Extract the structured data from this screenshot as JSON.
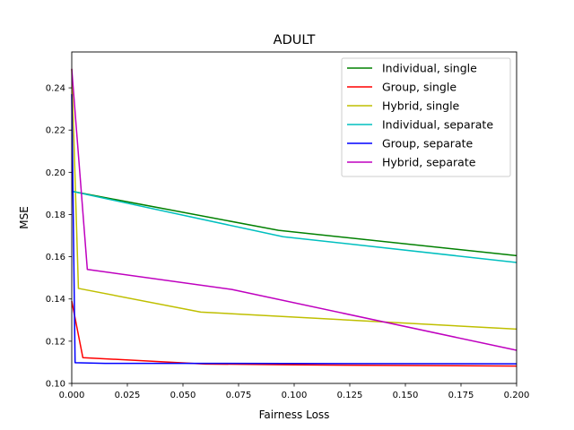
{
  "chart_data": {
    "type": "line",
    "title": "ADULT",
    "xlabel": "Fairness Loss",
    "ylabel": "MSE",
    "xlim": [
      0.0,
      0.2
    ],
    "ylim": [
      0.1,
      0.257
    ],
    "grid": false,
    "legend_position": "top-right",
    "x_ticks": [
      0.0,
      0.025,
      0.05,
      0.075,
      0.1,
      0.125,
      0.15,
      0.175,
      0.2
    ],
    "x_tick_labels": [
      "0.000",
      "0.025",
      "0.050",
      "0.075",
      "0.100",
      "0.125",
      "0.150",
      "0.175",
      "0.200"
    ],
    "y_ticks": [
      0.1,
      0.12,
      0.14,
      0.16,
      0.18,
      0.2,
      0.22,
      0.24
    ],
    "y_tick_labels": [
      "0.10",
      "0.12",
      "0.14",
      "0.16",
      "0.18",
      "0.20",
      "0.22",
      "0.24"
    ],
    "series": [
      {
        "name": "Individual, single",
        "color": "#008000",
        "points": [
          [
            0.0,
            0.191
          ],
          [
            0.093,
            0.1725
          ],
          [
            0.2,
            0.1605
          ]
        ]
      },
      {
        "name": "Group, single",
        "color": "#ff0000",
        "points": [
          [
            0.0,
            0.139
          ],
          [
            0.005,
            0.1122
          ],
          [
            0.06,
            0.1092
          ],
          [
            0.1,
            0.1088
          ],
          [
            0.2,
            0.1082
          ]
        ]
      },
      {
        "name": "Hybrid, single",
        "color": "#bfbf00",
        "points": [
          [
            0.0,
            0.249
          ],
          [
            0.003,
            0.145
          ],
          [
            0.058,
            0.1338
          ],
          [
            0.2,
            0.1257
          ]
        ]
      },
      {
        "name": "Individual, separate",
        "color": "#00bfbf",
        "points": [
          [
            0.0,
            0.191
          ],
          [
            0.095,
            0.1695
          ],
          [
            0.2,
            0.1573
          ]
        ]
      },
      {
        "name": "Group, separate",
        "color": "#0000ff",
        "points": [
          [
            0.0,
            0.237
          ],
          [
            0.0015,
            0.1098
          ],
          [
            0.015,
            0.1095
          ],
          [
            0.06,
            0.1095
          ],
          [
            0.2,
            0.1093
          ]
        ]
      },
      {
        "name": "Hybrid, separate",
        "color": "#bf00bf",
        "points": [
          [
            0.0,
            0.249
          ],
          [
            0.007,
            0.154
          ],
          [
            0.072,
            0.1445
          ],
          [
            0.2,
            0.1157
          ]
        ]
      }
    ]
  }
}
